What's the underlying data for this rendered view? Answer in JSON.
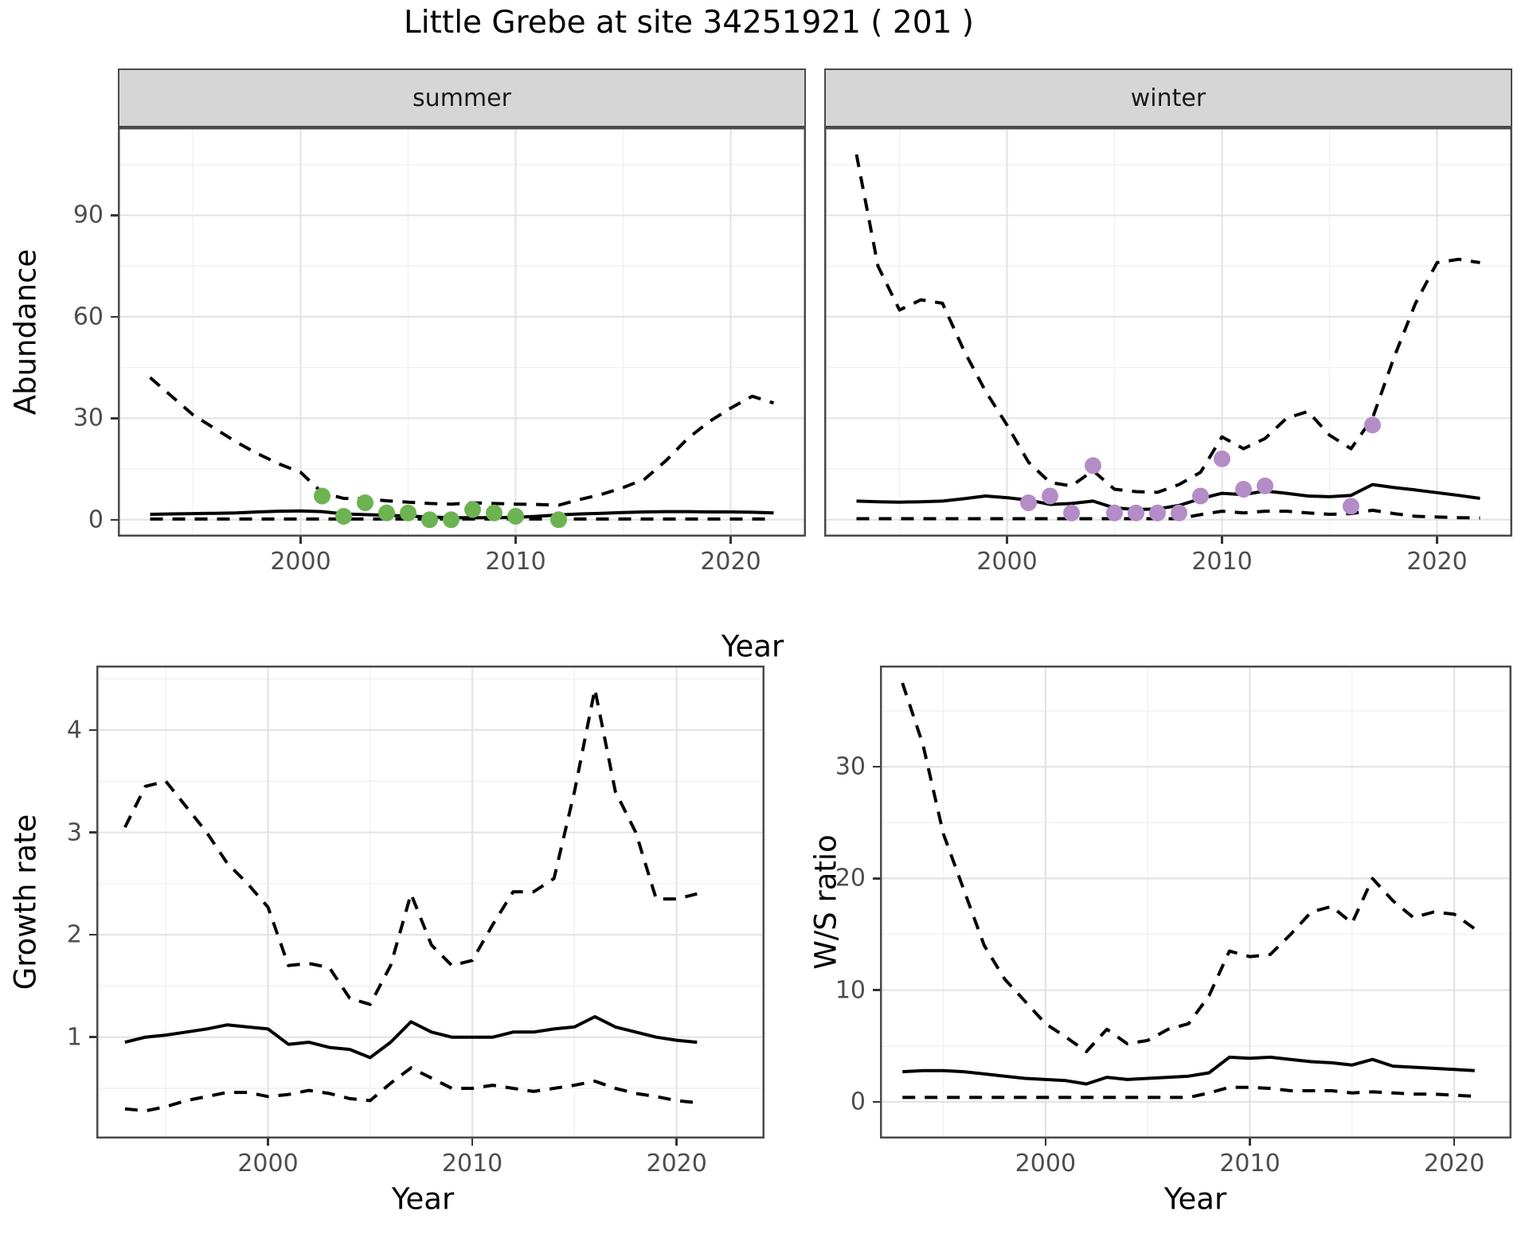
{
  "title": "Little Grebe at site 34251921 ( 201 )",
  "facets": {
    "summer": "summer",
    "winter": "winter"
  },
  "labels": {
    "year": "Year",
    "abundance": "Abundance",
    "growth_rate": "Growth rate",
    "ws_ratio": "W/S ratio"
  },
  "colors": {
    "summer_points": "#6db351",
    "winter_points": "#b48cc8",
    "line": "#000000",
    "grid_major": "#e4e4e4",
    "grid_minor": "#f1f1f1",
    "strip_bg": "#d6d6d6",
    "panel_border": "#4a4a4a",
    "tick_text": "#4d4d4d"
  },
  "chart_data": [
    {
      "id": "summer-abundance",
      "type": "line",
      "facet": "summer",
      "xlabel": "Year",
      "ylabel": "Abundance",
      "xlim": [
        1991.5,
        2023.5
      ],
      "ylim": [
        -5,
        116
      ],
      "x_ticks": [
        2000,
        2010,
        2020
      ],
      "x_minor": [
        1995,
        2005,
        2015
      ],
      "y_ticks": [
        0,
        30,
        60,
        90
      ],
      "y_minor": [
        15,
        45,
        75,
        105
      ],
      "legend": "none",
      "series": [
        {
          "name": "upper-ci",
          "style": "dashed",
          "color": "#000000",
          "x": [
            1993,
            1994,
            1995,
            1996,
            1997,
            1998,
            1999,
            2000,
            2001,
            2002,
            2003,
            2004,
            2005,
            2006,
            2007,
            2008,
            2009,
            2010,
            2011,
            2012,
            2013,
            2014,
            2015,
            2016,
            2017,
            2018,
            2019,
            2020,
            2021,
            2022
          ],
          "y": [
            42,
            36.5,
            31,
            27,
            23,
            19.5,
            16.5,
            14,
            8,
            6.3,
            6.2,
            5.6,
            5.2,
            4.8,
            4.6,
            5,
            4.8,
            4.6,
            4.5,
            4.3,
            6,
            7.5,
            9.5,
            12,
            17.5,
            24,
            29,
            33,
            36.5,
            34.5
          ]
        },
        {
          "name": "median",
          "style": "solid",
          "color": "#000000",
          "x": [
            1993,
            1994,
            1995,
            1996,
            1997,
            1998,
            1999,
            2000,
            2001,
            2002,
            2003,
            2004,
            2005,
            2006,
            2007,
            2008,
            2009,
            2010,
            2011,
            2012,
            2013,
            2014,
            2015,
            2016,
            2017,
            2018,
            2019,
            2020,
            2021,
            2022
          ],
          "y": [
            1.6,
            1.7,
            1.8,
            1.9,
            2.0,
            2.3,
            2.5,
            2.6,
            2.4,
            1.7,
            1.5,
            1.3,
            1.1,
            0.8,
            0.6,
            0.6,
            0.6,
            0.7,
            1.0,
            1.4,
            1.7,
            1.9,
            2.1,
            2.3,
            2.4,
            2.4,
            2.3,
            2.3,
            2.2,
            2.0
          ]
        },
        {
          "name": "lower-ci",
          "style": "dashed",
          "color": "#000000",
          "x": [
            1993,
            1994,
            1995,
            1996,
            1997,
            1998,
            1999,
            2000,
            2001,
            2002,
            2003,
            2004,
            2005,
            2006,
            2007,
            2008,
            2009,
            2010,
            2011,
            2012,
            2013,
            2014,
            2015,
            2016,
            2017,
            2018,
            2019,
            2020,
            2021,
            2022
          ],
          "y": [
            0.2,
            0.2,
            0.2,
            0.2,
            0.2,
            0.2,
            0.2,
            0.2,
            0.2,
            0.2,
            0.2,
            0.2,
            0.2,
            0.2,
            0.2,
            0.2,
            0.2,
            0.2,
            0.2,
            0.2,
            0.2,
            0.2,
            0.2,
            0.2,
            0.2,
            0.2,
            0.2,
            0.2,
            0.2,
            0.2
          ]
        }
      ],
      "points": {
        "name": "observed-summer",
        "color": "#6db351",
        "x": [
          2001,
          2002,
          2003,
          2004,
          2005,
          2006,
          2007,
          2008,
          2009,
          2010,
          2012
        ],
        "y": [
          7,
          1,
          5,
          2,
          2,
          0,
          0,
          3,
          2,
          1,
          0
        ]
      }
    },
    {
      "id": "winter-abundance",
      "type": "line",
      "facet": "winter",
      "xlabel": "Year",
      "ylabel": "Abundance",
      "xlim": [
        1991.5,
        2023.5
      ],
      "ylim": [
        -5,
        116
      ],
      "x_ticks": [
        2000,
        2010,
        2020
      ],
      "x_minor": [
        1995,
        2005,
        2015
      ],
      "y_ticks": [
        0,
        30,
        60,
        90
      ],
      "y_minor": [
        15,
        45,
        75,
        105
      ],
      "legend": "none",
      "series": [
        {
          "name": "upper-ci",
          "style": "dashed",
          "color": "#000000",
          "x": [
            1993,
            1994,
            1995,
            1996,
            1997,
            1998,
            1999,
            2000,
            2001,
            2002,
            2003,
            2004,
            2005,
            2006,
            2007,
            2008,
            2009,
            2010,
            2011,
            2012,
            2013,
            2014,
            2015,
            2016,
            2017,
            2018,
            2019,
            2020,
            2021,
            2022
          ],
          "y": [
            108,
            75,
            62,
            65,
            64,
            50,
            38,
            28,
            17,
            11,
            10,
            14.5,
            9,
            8.3,
            8.1,
            10.4,
            14,
            24.5,
            21,
            24,
            30,
            32,
            25,
            21,
            30,
            48,
            64,
            76,
            77,
            76
          ]
        },
        {
          "name": "median",
          "style": "solid",
          "color": "#000000",
          "x": [
            1993,
            1994,
            1995,
            1996,
            1997,
            1998,
            1999,
            2000,
            2001,
            2002,
            2003,
            2004,
            2005,
            2006,
            2007,
            2008,
            2009,
            2010,
            2011,
            2012,
            2013,
            2014,
            2015,
            2016,
            2017,
            2018,
            2019,
            2020,
            2021,
            2022
          ],
          "y": [
            5.5,
            5.3,
            5.2,
            5.3,
            5.5,
            6.2,
            7,
            6.5,
            5.8,
            4.5,
            4.8,
            5.5,
            3.5,
            3,
            3.2,
            4.2,
            6.2,
            7.8,
            7.4,
            8.5,
            7.8,
            7,
            6.8,
            7.2,
            10.4,
            9.5,
            8.8,
            8,
            7.2,
            6.3
          ]
        },
        {
          "name": "lower-ci",
          "style": "dashed",
          "color": "#000000",
          "x": [
            1993,
            1994,
            1995,
            1996,
            1997,
            1998,
            1999,
            2000,
            2001,
            2002,
            2003,
            2004,
            2005,
            2006,
            2007,
            2008,
            2009,
            2010,
            2011,
            2012,
            2013,
            2014,
            2015,
            2016,
            2017,
            2018,
            2019,
            2020,
            2021,
            2022
          ],
          "y": [
            0.3,
            0.3,
            0.3,
            0.3,
            0.3,
            0.3,
            0.3,
            0.3,
            0.3,
            0.3,
            0.3,
            0.3,
            0.3,
            0.3,
            0.3,
            0.3,
            1.5,
            2.5,
            2,
            2.5,
            2.5,
            2,
            1.6,
            1.8,
            2.8,
            1.8,
            1,
            0.8,
            0.6,
            0.5
          ]
        }
      ],
      "points": {
        "name": "observed-winter",
        "color": "#b48cc8",
        "x": [
          2001,
          2002,
          2003,
          2004,
          2005,
          2006,
          2007,
          2008,
          2009,
          2010,
          2011,
          2012,
          2016,
          2017
        ],
        "y": [
          5,
          7,
          2,
          16,
          2,
          2,
          2,
          2,
          7,
          18,
          9,
          10,
          4,
          28
        ]
      }
    },
    {
      "id": "growth-rate",
      "type": "line",
      "facet": null,
      "xlabel": "Year",
      "ylabel": "Growth rate",
      "xlim": [
        1991.6,
        2024.3
      ],
      "ylim": [
        0.01,
        4.63
      ],
      "x_ticks": [
        2000,
        2010,
        2020
      ],
      "x_minor": [
        1995,
        2005,
        2015
      ],
      "y_ticks": [
        1,
        2,
        3,
        4
      ],
      "y_minor": [
        0.5,
        1.5,
        2.5,
        3.5,
        4.5
      ],
      "legend": "none",
      "series": [
        {
          "name": "upper-ci",
          "style": "dashed",
          "color": "#000000",
          "x": [
            1993,
            1994,
            1995,
            1996,
            1997,
            1998,
            1999,
            2000,
            2001,
            2002,
            2003,
            2004,
            2005,
            2006,
            2007,
            2008,
            2009,
            2010,
            2011,
            2012,
            2013,
            2014,
            2015,
            2016,
            2017,
            2018,
            2019,
            2020,
            2021
          ],
          "y": [
            3.05,
            3.45,
            3.5,
            3.25,
            3.0,
            2.7,
            2.5,
            2.27,
            1.7,
            1.72,
            1.68,
            1.38,
            1.32,
            1.7,
            2.4,
            1.9,
            1.7,
            1.75,
            2.1,
            2.42,
            2.42,
            2.55,
            3.4,
            4.4,
            3.4,
            3.0,
            2.35,
            2.35,
            2.4
          ]
        },
        {
          "name": "median",
          "style": "solid",
          "color": "#000000",
          "x": [
            1993,
            1994,
            1995,
            1996,
            1997,
            1998,
            1999,
            2000,
            2001,
            2002,
            2003,
            2004,
            2005,
            2006,
            2007,
            2008,
            2009,
            2010,
            2011,
            2012,
            2013,
            2014,
            2015,
            2016,
            2017,
            2018,
            2019,
            2020,
            2021
          ],
          "y": [
            0.95,
            1.0,
            1.02,
            1.05,
            1.08,
            1.12,
            1.1,
            1.08,
            0.93,
            0.95,
            0.9,
            0.88,
            0.8,
            0.95,
            1.15,
            1.05,
            1.0,
            1.0,
            1.0,
            1.05,
            1.05,
            1.08,
            1.1,
            1.2,
            1.1,
            1.05,
            1.0,
            0.97,
            0.95
          ]
        },
        {
          "name": "lower-ci",
          "style": "dashed",
          "color": "#000000",
          "x": [
            1993,
            1994,
            1995,
            1996,
            1997,
            1998,
            1999,
            2000,
            2001,
            2002,
            2003,
            2004,
            2005,
            2006,
            2007,
            2008,
            2009,
            2010,
            2011,
            2012,
            2013,
            2014,
            2015,
            2016,
            2017,
            2018,
            2019,
            2020,
            2021
          ],
          "y": [
            0.3,
            0.28,
            0.32,
            0.38,
            0.42,
            0.46,
            0.46,
            0.42,
            0.44,
            0.48,
            0.45,
            0.4,
            0.38,
            0.55,
            0.7,
            0.6,
            0.5,
            0.5,
            0.53,
            0.5,
            0.47,
            0.5,
            0.53,
            0.57,
            0.5,
            0.45,
            0.42,
            0.38,
            0.36
          ]
        }
      ],
      "points": null
    },
    {
      "id": "ws-ratio",
      "type": "line",
      "facet": null,
      "xlabel": "Year",
      "ylabel": "W/S ratio",
      "xlim": [
        1991.9,
        2022.8
      ],
      "ylim": [
        -3.28,
        39.06
      ],
      "x_ticks": [
        2000,
        2010,
        2020
      ],
      "x_minor": [
        1995,
        2005,
        2015
      ],
      "y_ticks": [
        0,
        10,
        20,
        30
      ],
      "y_minor": [
        5,
        15,
        25,
        35
      ],
      "legend": "none",
      "series": [
        {
          "name": "upper-ci",
          "style": "dashed",
          "color": "#000000",
          "x": [
            1993,
            1994,
            1995,
            1996,
            1997,
            1998,
            1999,
            2000,
            2001,
            2002,
            2003,
            2004,
            2005,
            2006,
            2007,
            2008,
            2009,
            2010,
            2011,
            2012,
            2013,
            2014,
            2015,
            2016,
            2017,
            2018,
            2019,
            2020,
            2021
          ],
          "y": [
            37.5,
            32,
            24,
            19,
            14,
            11,
            9,
            7,
            5.8,
            4.5,
            6.5,
            5.2,
            5.5,
            6.5,
            7,
            9.5,
            13.5,
            13,
            13.2,
            15,
            17,
            17.5,
            16,
            20,
            18,
            16.5,
            17,
            16.8,
            15.5
          ]
        },
        {
          "name": "median",
          "style": "solid",
          "color": "#000000",
          "x": [
            1993,
            1994,
            1995,
            1996,
            1997,
            1998,
            1999,
            2000,
            2001,
            2002,
            2003,
            2004,
            2005,
            2006,
            2007,
            2008,
            2009,
            2010,
            2011,
            2012,
            2013,
            2014,
            2015,
            2016,
            2017,
            2018,
            2019,
            2020,
            2021
          ],
          "y": [
            2.7,
            2.8,
            2.8,
            2.7,
            2.5,
            2.3,
            2.1,
            2.0,
            1.9,
            1.6,
            2.2,
            2.0,
            2.1,
            2.2,
            2.3,
            2.6,
            4.0,
            3.9,
            4.0,
            3.8,
            3.6,
            3.5,
            3.3,
            3.8,
            3.2,
            3.1,
            3.0,
            2.9,
            2.8
          ]
        },
        {
          "name": "lower-ci",
          "style": "dashed",
          "color": "#000000",
          "x": [
            1993,
            1994,
            1995,
            1996,
            1997,
            1998,
            1999,
            2000,
            2001,
            2002,
            2003,
            2004,
            2005,
            2006,
            2007,
            2008,
            2009,
            2010,
            2011,
            2012,
            2013,
            2014,
            2015,
            2016,
            2017,
            2018,
            2019,
            2020,
            2021
          ],
          "y": [
            0.4,
            0.4,
            0.4,
            0.4,
            0.4,
            0.4,
            0.4,
            0.4,
            0.4,
            0.4,
            0.4,
            0.4,
            0.4,
            0.4,
            0.4,
            0.8,
            1.3,
            1.3,
            1.2,
            1.0,
            1.0,
            1.0,
            0.8,
            0.9,
            0.8,
            0.7,
            0.7,
            0.6,
            0.5
          ]
        }
      ],
      "points": null
    }
  ]
}
